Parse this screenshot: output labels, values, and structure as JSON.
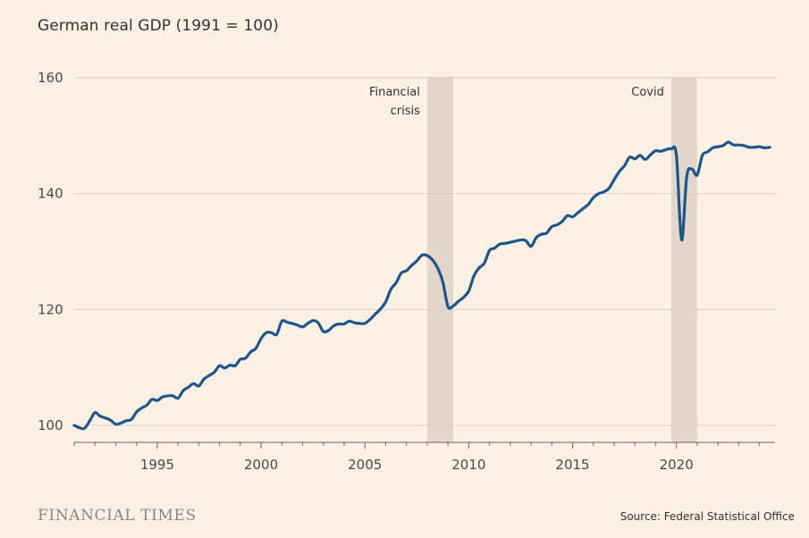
{
  "title": "German real GDP (1991 = 100)",
  "brand": "FINANCIAL TIMES",
  "source": "Source: Federal Statistical Office",
  "colors": {
    "background": "#fdf1e6",
    "line": "#1f5689",
    "band": "#e3d7cb",
    "grid": "#d9cfc5"
  },
  "chart_data": {
    "type": "line",
    "title": "German real GDP (1991 = 100)",
    "xlabel": "",
    "ylabel": "",
    "xlim": [
      1991.0,
      2024.75
    ],
    "ylim": [
      97,
      160
    ],
    "y_ticks": [
      100,
      120,
      140,
      160
    ],
    "x_ticks": [
      1995,
      2000,
      2005,
      2010,
      2015,
      2020
    ],
    "grid": "horizontal",
    "legend": "none",
    "bands": [
      {
        "label": [
          "Financial",
          "crisis"
        ],
        "start": 2008.0,
        "end": 2009.25
      },
      {
        "label": [
          "Covid"
        ],
        "start": 2019.75,
        "end": 2021.0
      }
    ],
    "series": [
      {
        "x": [
          1991.0,
          1991.25,
          1991.5,
          1991.75,
          1992.0,
          1992.25,
          1992.5,
          1992.75,
          1993.0,
          1993.25,
          1993.5,
          1993.75,
          1994.0,
          1994.25,
          1994.5,
          1994.75,
          1995.0,
          1995.25,
          1995.5,
          1995.75,
          1996.0,
          1996.25,
          1996.5,
          1996.75,
          1997.0,
          1997.25,
          1997.5,
          1997.75,
          1998.0,
          1998.25,
          1998.5,
          1998.75,
          1999.0,
          1999.25,
          1999.5,
          1999.75,
          2000.0,
          2000.25,
          2000.5,
          2000.75,
          2001.0,
          2001.25,
          2001.5,
          2001.75,
          2002.0,
          2002.25,
          2002.5,
          2002.75,
          2003.0,
          2003.25,
          2003.5,
          2003.75,
          2004.0,
          2004.25,
          2004.5,
          2004.75,
          2005.0,
          2005.25,
          2005.5,
          2005.75,
          2006.0,
          2006.25,
          2006.5,
          2006.75,
          2007.0,
          2007.25,
          2007.5,
          2007.75,
          2008.0,
          2008.25,
          2008.5,
          2008.75,
          2009.0,
          2009.25,
          2009.5,
          2009.75,
          2010.0,
          2010.25,
          2010.5,
          2010.75,
          2011.0,
          2011.25,
          2011.5,
          2011.75,
          2012.0,
          2012.25,
          2012.5,
          2012.75,
          2013.0,
          2013.25,
          2013.5,
          2013.75,
          2014.0,
          2014.25,
          2014.5,
          2014.75,
          2015.0,
          2015.25,
          2015.5,
          2015.75,
          2016.0,
          2016.25,
          2016.5,
          2016.75,
          2017.0,
          2017.25,
          2017.5,
          2017.75,
          2018.0,
          2018.25,
          2018.5,
          2018.75,
          2019.0,
          2019.25,
          2019.5,
          2019.75,
          2020.0,
          2020.25,
          2020.5,
          2020.75,
          2021.0,
          2021.25,
          2021.5,
          2021.75,
          2022.0,
          2022.25,
          2022.5,
          2022.75,
          2023.0,
          2023.25,
          2023.5,
          2023.75,
          2024.0,
          2024.25,
          2024.5
        ],
        "values": [
          100.0,
          99.6,
          99.5,
          100.8,
          102.2,
          101.6,
          101.3,
          100.9,
          100.2,
          100.4,
          100.8,
          101.0,
          102.3,
          103.0,
          103.5,
          104.5,
          104.3,
          104.9,
          105.1,
          105.1,
          104.7,
          106.0,
          106.6,
          107.2,
          106.8,
          108.0,
          108.6,
          109.2,
          110.3,
          109.9,
          110.4,
          110.3,
          111.4,
          111.6,
          112.7,
          113.3,
          115.0,
          116.0,
          116.0,
          115.7,
          118.0,
          117.8,
          117.6,
          117.3,
          117.0,
          117.6,
          118.1,
          117.7,
          116.2,
          116.4,
          117.2,
          117.5,
          117.5,
          118.0,
          117.7,
          117.6,
          117.6,
          118.3,
          119.2,
          120.1,
          121.3,
          123.5,
          124.6,
          126.3,
          126.7,
          127.6,
          128.4,
          129.4,
          129.3,
          128.6,
          127.2,
          124.8,
          120.5,
          120.6,
          121.4,
          122.1,
          123.2,
          125.8,
          127.2,
          128.0,
          130.2,
          130.6,
          131.3,
          131.4,
          131.6,
          131.8,
          132.0,
          131.9,
          130.9,
          132.4,
          133.0,
          133.2,
          134.3,
          134.6,
          135.2,
          136.2,
          136.0,
          136.7,
          137.4,
          138.1,
          139.3,
          140.0,
          140.3,
          140.9,
          142.4,
          143.8,
          144.8,
          146.3,
          146.0,
          146.6,
          145.9,
          146.7,
          147.4,
          147.3,
          147.6,
          147.7,
          146.6,
          132.0,
          143.0,
          144.2,
          143.2,
          146.6,
          147.2,
          147.9,
          148.1,
          148.3,
          148.9,
          148.4,
          148.4,
          148.3,
          148.0,
          148.0,
          148.1,
          147.9,
          148.0
        ]
      }
    ]
  }
}
